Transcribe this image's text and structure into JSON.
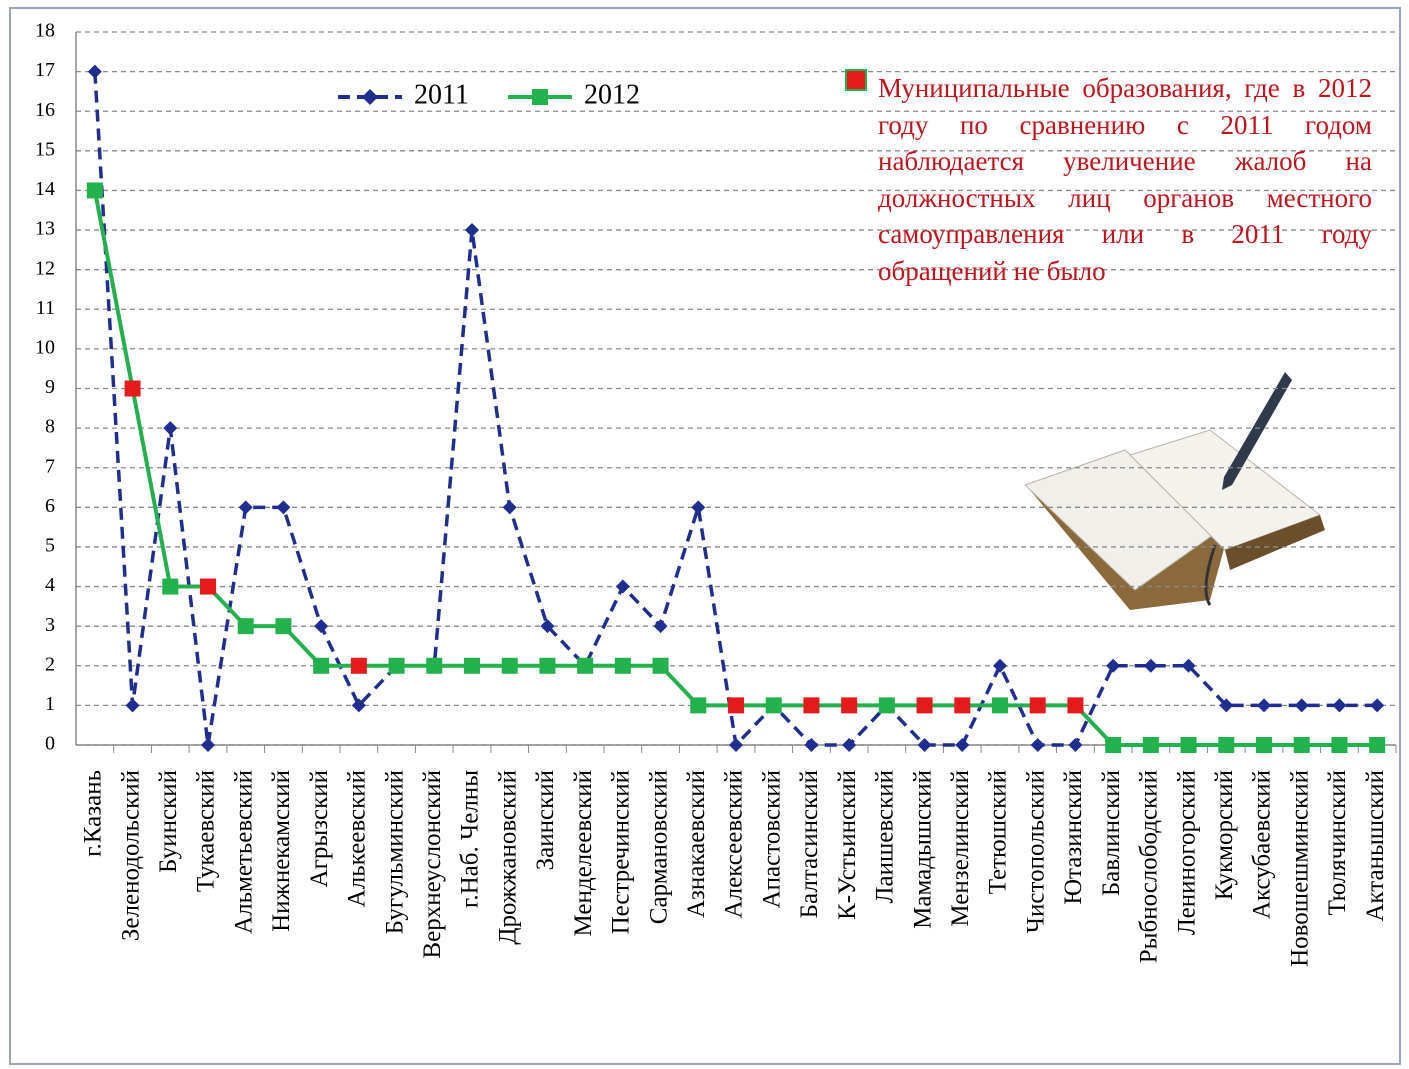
{
  "chart_data": {
    "type": "line",
    "categories": [
      "г.Казань",
      "Зеленодольский",
      "Буинский",
      "Тукаевский",
      "Альметьевский",
      "Нижнекамский",
      "Агрызский",
      "Алькеевский",
      "Бугульминский",
      "Верхнеуслонский",
      "г.Наб. Челны",
      "Дрожжановский",
      "Заинский",
      "Менделеевский",
      "Пестречинский",
      "Сармановский",
      "Азнакаевский",
      "Алексеевский",
      "Апастовский",
      "Балтасинский",
      "К-Устьинский",
      "Лаишевский",
      "Мамадышский",
      "Мензелинский",
      "Тетюшский",
      "Чистопольский",
      "Ютазинский",
      "Бавлинский",
      "Рыбнослободский",
      "Лениногорский",
      "Кукморский",
      "Аксубаевский",
      "Новошешминский",
      "Тюлячинский",
      "Актанышский"
    ],
    "series": [
      {
        "name": "2011",
        "color": "#1f2e8f",
        "dash": true,
        "marker": "diamond",
        "values": [
          17,
          1,
          8,
          0,
          6,
          6,
          3,
          1,
          2,
          2,
          13,
          6,
          3,
          2,
          4,
          3,
          6,
          0,
          1,
          0,
          0,
          1,
          0,
          0,
          2,
          0,
          0,
          2,
          2,
          2,
          1,
          1,
          1,
          1,
          1
        ]
      },
      {
        "name": "2012",
        "color": "#22b14c",
        "dash": false,
        "marker": "square",
        "values": [
          14,
          9,
          4,
          4,
          3,
          3,
          2,
          2,
          2,
          2,
          2,
          2,
          2,
          2,
          2,
          2,
          1,
          1,
          1,
          1,
          1,
          1,
          1,
          1,
          1,
          1,
          1,
          0,
          0,
          0,
          0,
          0,
          0,
          0,
          0
        ],
        "marker_colors": [
          "#22b14c",
          "#e41a1c",
          "#22b14c",
          "#e41a1c",
          "#22b14c",
          "#22b14c",
          "#22b14c",
          "#e41a1c",
          "#22b14c",
          "#22b14c",
          "#22b14c",
          "#22b14c",
          "#22b14c",
          "#22b14c",
          "#22b14c",
          "#22b14c",
          "#22b14c",
          "#e41a1c",
          "#22b14c",
          "#e41a1c",
          "#e41a1c",
          "#22b14c",
          "#e41a1c",
          "#e41a1c",
          "#22b14c",
          "#e41a1c",
          "#e41a1c",
          "#22b14c",
          "#22b14c",
          "#22b14c",
          "#22b14c",
          "#22b14c",
          "#22b14c",
          "#22b14c",
          "#22b14c"
        ]
      }
    ],
    "annotation": {
      "text": "Муниципальные образования, где в 2012 году по сравнению с 2011 годом наблюдается увеличение жалоб на должностных лиц органов местного самоуправления или в 2011 году обращений не было",
      "color": "#c0141c",
      "marker_color": "#e41a1c"
    },
    "ylim": [
      0,
      18
    ],
    "yticks": [
      0,
      1,
      2,
      3,
      4,
      5,
      6,
      7,
      8,
      9,
      10,
      11,
      12,
      13,
      14,
      15,
      16,
      17,
      18
    ],
    "grid": true
  }
}
